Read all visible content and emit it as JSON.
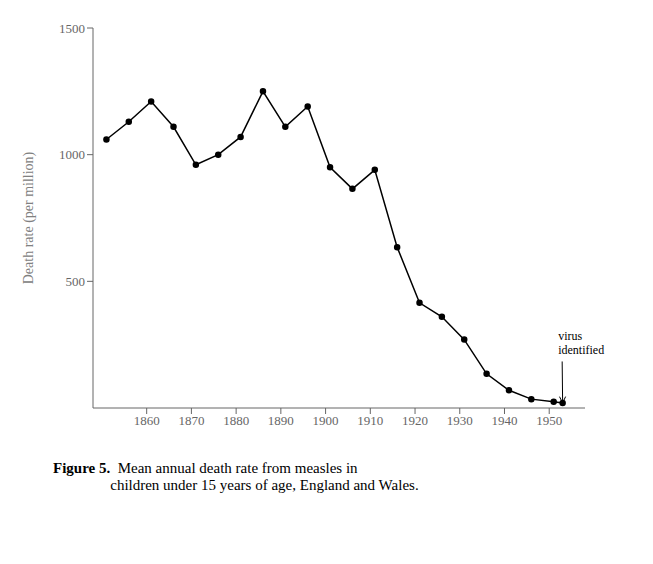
{
  "chart_data": {
    "type": "line",
    "x": [
      1851,
      1856,
      1861,
      1866,
      1871,
      1876,
      1881,
      1886,
      1891,
      1896,
      1901,
      1906,
      1911,
      1916,
      1921,
      1926,
      1931,
      1936,
      1941,
      1946,
      1951,
      1953
    ],
    "values": [
      1060,
      1130,
      1210,
      1110,
      960,
      1000,
      1070,
      1250,
      1110,
      1190,
      950,
      865,
      940,
      635,
      415,
      360,
      270,
      135,
      70,
      35,
      25,
      20
    ],
    "xlim": [
      1848,
      1958
    ],
    "ylim": [
      0,
      1500
    ],
    "yticks": [
      500,
      1000,
      1500
    ],
    "xticks": [
      1860,
      1870,
      1880,
      1890,
      1900,
      1910,
      1920,
      1930,
      1940,
      1950
    ],
    "y_label": "Death rate (per million)",
    "annotations": [
      {
        "text": "virus\nidentified",
        "xy": [
          1953,
          20
        ],
        "text_xy": [
          1952,
          310
        ]
      }
    ],
    "caption_bold": "Figure 5.",
    "caption": "  Mean annual death rate from measles in\nchildren under 15 years of age, England and Wales.",
    "color": "#000000",
    "marker": "circle",
    "line_style": "solid",
    "grid": false
  }
}
